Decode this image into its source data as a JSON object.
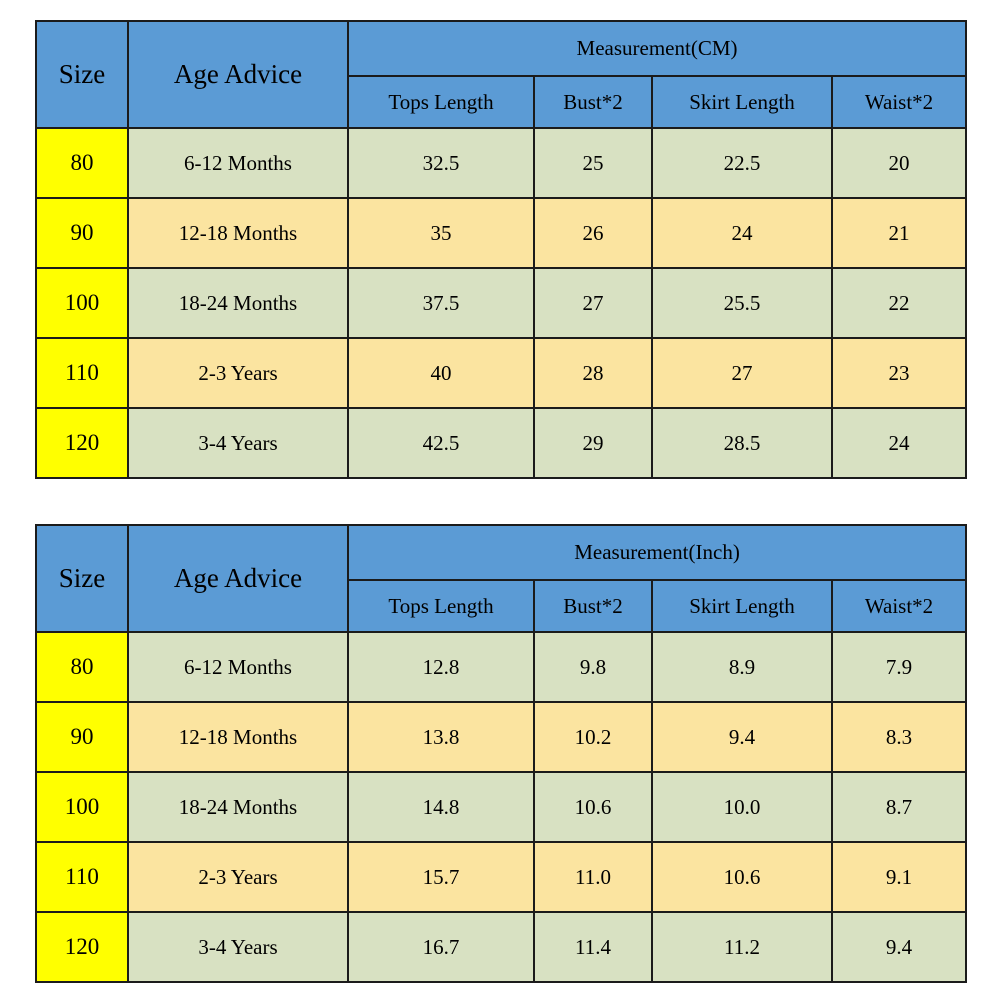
{
  "colors": {
    "header_blue": "#5b9bd5",
    "size_yellow": "#ffff00",
    "row_green": "#d8e1c2",
    "row_cream": "#fbe4a0",
    "border": "#1b1b1b"
  },
  "chart_data": [
    {
      "type": "table",
      "group_header": "Measurement(CM)",
      "header": {
        "size": "Size",
        "age": "Age Advice"
      },
      "measure_columns": [
        "Tops Length",
        "Bust*2",
        "Skirt Length",
        "Waist*2"
      ],
      "rows": [
        {
          "size": "80",
          "age": "6-12 Months",
          "values": [
            "32.5",
            "25",
            "22.5",
            "20"
          ]
        },
        {
          "size": "90",
          "age": "12-18 Months",
          "values": [
            "35",
            "26",
            "24",
            "21"
          ]
        },
        {
          "size": "100",
          "age": "18-24 Months",
          "values": [
            "37.5",
            "27",
            "25.5",
            "22"
          ]
        },
        {
          "size": "110",
          "age": "2-3 Years",
          "values": [
            "40",
            "28",
            "27",
            "23"
          ]
        },
        {
          "size": "120",
          "age": "3-4 Years",
          "values": [
            "42.5",
            "29",
            "28.5",
            "24"
          ]
        }
      ]
    },
    {
      "type": "table",
      "group_header": "Measurement(Inch)",
      "header": {
        "size": "Size",
        "age": "Age Advice"
      },
      "measure_columns": [
        "Tops Length",
        "Bust*2",
        "Skirt Length",
        "Waist*2"
      ],
      "rows": [
        {
          "size": "80",
          "age": "6-12 Months",
          "values": [
            "12.8",
            "9.8",
            "8.9",
            "7.9"
          ]
        },
        {
          "size": "90",
          "age": "12-18 Months",
          "values": [
            "13.8",
            "10.2",
            "9.4",
            "8.3"
          ]
        },
        {
          "size": "100",
          "age": "18-24 Months",
          "values": [
            "14.8",
            "10.6",
            "10.0",
            "8.7"
          ]
        },
        {
          "size": "110",
          "age": "2-3 Years",
          "values": [
            "15.7",
            "11.0",
            "10.6",
            "9.1"
          ]
        },
        {
          "size": "120",
          "age": "3-4 Years",
          "values": [
            "16.7",
            "11.4",
            "11.2",
            "9.4"
          ]
        }
      ]
    }
  ]
}
